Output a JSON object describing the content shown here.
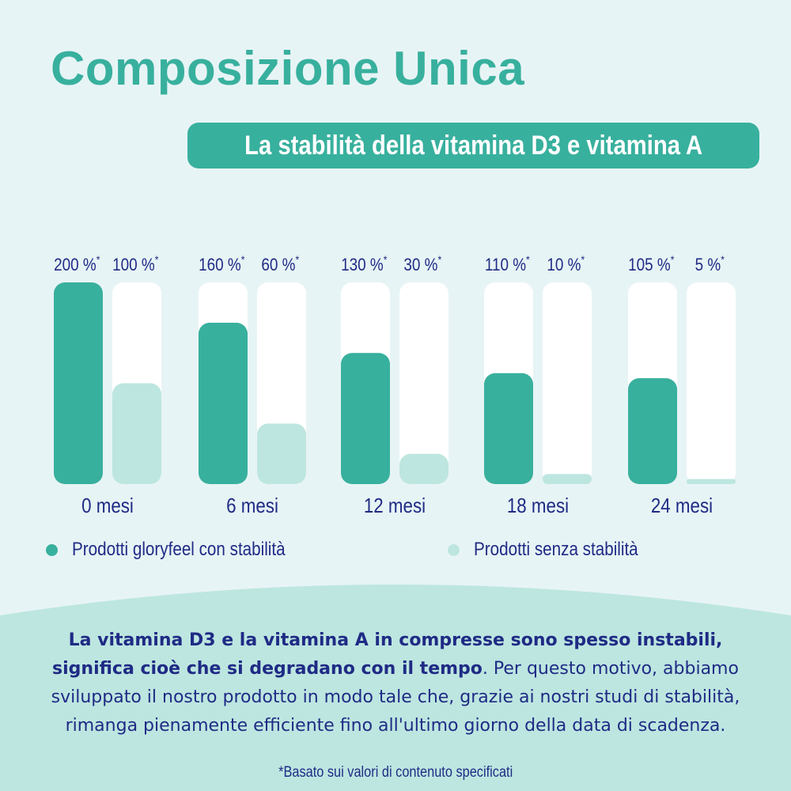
{
  "header": {
    "title": "Composizione Unica",
    "subtitle": "La stabilità della vitamina D3 e vitamina A"
  },
  "colors": {
    "background": "#e7f4f5",
    "accent": "#38b09e",
    "light_accent": "#bde6e0",
    "track": "#ffffff",
    "text_dark": "#1f2b85"
  },
  "chart_data": {
    "type": "bar",
    "categories": [
      "0 mesi",
      "6 mesi",
      "12 mesi",
      "18 mesi",
      "24 mesi"
    ],
    "series": [
      {
        "name": "Prodotti gloryfeel con stabilità",
        "values": [
          200,
          160,
          130,
          110,
          105
        ],
        "labels": [
          "200 %",
          "160 %",
          "130 %",
          "110 %",
          "105 %"
        ],
        "color": "#38b09e"
      },
      {
        "name": "Prodotti senza stabilità",
        "values": [
          100,
          60,
          30,
          10,
          5
        ],
        "labels": [
          "100 %",
          "60 %",
          "30 %",
          "10 %",
          "5 %"
        ],
        "color": "#bde6e0"
      }
    ],
    "label_mark": "*",
    "ylim": [
      0,
      200
    ],
    "grid": false,
    "legend": "bottom"
  },
  "legend": {
    "item1": "Prodotti gloryfeel con stabilità",
    "item2": "Prodotti senza stabilità"
  },
  "body": {
    "bold_text": "La vitamina D3 e la vitamina A in compresse sono spesso instabili, significa cioè che si degradano con il tempo",
    "regular_text": ". Per questo motivo, abbiamo sviluppato il nostro prodotto in modo tale che, grazie ai nostri studi di stabilità, rimanga pienamente efficiente fino all'ultimo giorno della data di scadenza.",
    "footnote": "*Basato sui valori di contenuto specificati"
  }
}
